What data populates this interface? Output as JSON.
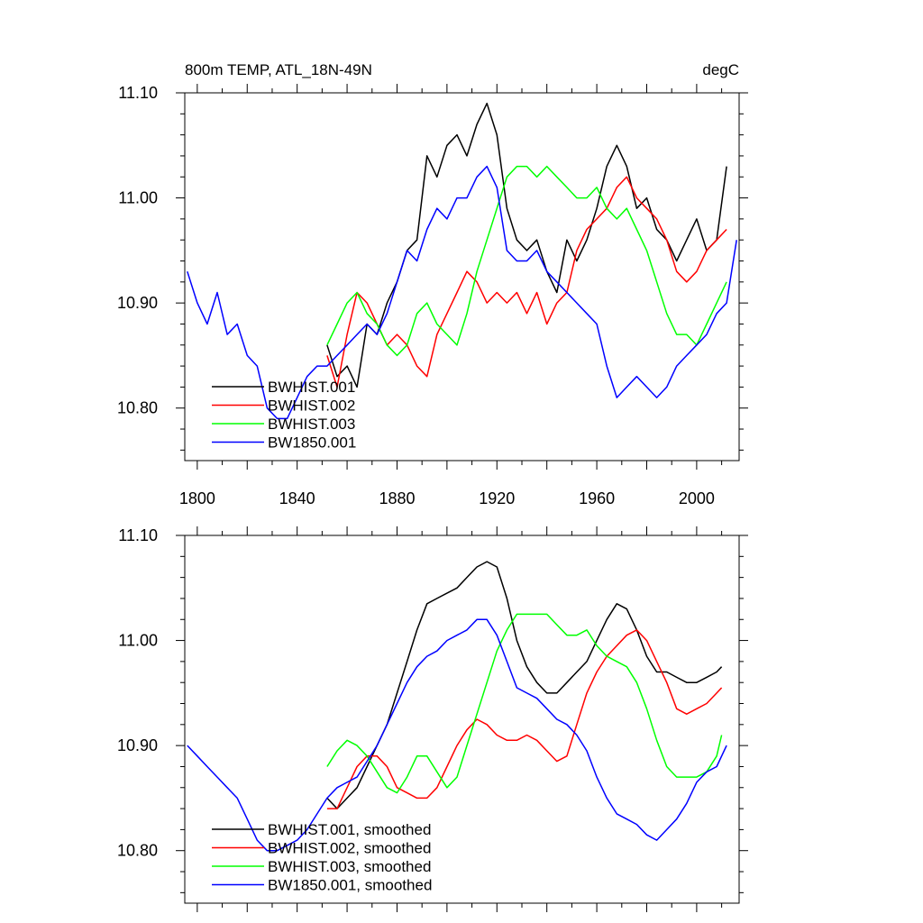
{
  "chart_data": [
    {
      "type": "line",
      "title": "800m TEMP, ATL_18N-49N",
      "units": "degC",
      "xlim": [
        1795,
        2017
      ],
      "ylim": [
        10.75,
        11.1
      ],
      "x_ticks": [
        "1800",
        "1840",
        "1880",
        "1920",
        "1960",
        "2000"
      ],
      "y_ticks": [
        "11.10",
        "11.00",
        "10.90",
        "10.80"
      ],
      "legend_position": "bottom-left",
      "series": [
        {
          "name": "BWHIST.001",
          "color": "#000000",
          "x": [
            1852,
            1856,
            1860,
            1864,
            1868,
            1872,
            1876,
            1880,
            1884,
            1888,
            1892,
            1896,
            1900,
            1904,
            1908,
            1912,
            1916,
            1920,
            1924,
            1928,
            1932,
            1936,
            1940,
            1944,
            1948,
            1952,
            1956,
            1960,
            1964,
            1968,
            1972,
            1976,
            1980,
            1984,
            1988,
            1992,
            1996,
            2000,
            2004,
            2008,
            2012
          ],
          "y": [
            10.86,
            10.83,
            10.84,
            10.82,
            10.88,
            10.87,
            10.9,
            10.92,
            10.95,
            10.96,
            11.04,
            11.02,
            11.05,
            11.06,
            11.04,
            11.07,
            11.09,
            11.06,
            10.99,
            10.96,
            10.95,
            10.96,
            10.93,
            10.91,
            10.96,
            10.94,
            10.96,
            10.99,
            11.03,
            11.05,
            11.03,
            10.99,
            11.0,
            10.97,
            10.96,
            10.94,
            10.96,
            10.98,
            10.95,
            10.96,
            11.03
          ]
        },
        {
          "name": "BWHIST.002",
          "color": "#ff0000",
          "x": [
            1852,
            1856,
            1860,
            1864,
            1868,
            1872,
            1876,
            1880,
            1884,
            1888,
            1892,
            1896,
            1900,
            1904,
            1908,
            1912,
            1916,
            1920,
            1924,
            1928,
            1932,
            1936,
            1940,
            1944,
            1948,
            1952,
            1956,
            1960,
            1964,
            1968,
            1972,
            1976,
            1980,
            1984,
            1988,
            1992,
            1996,
            2000,
            2004,
            2008,
            2012
          ],
          "y": [
            10.85,
            10.82,
            10.87,
            10.91,
            10.9,
            10.88,
            10.86,
            10.87,
            10.86,
            10.84,
            10.83,
            10.87,
            10.89,
            10.91,
            10.93,
            10.92,
            10.9,
            10.91,
            10.9,
            10.91,
            10.89,
            10.91,
            10.88,
            10.9,
            10.91,
            10.95,
            10.97,
            10.98,
            10.99,
            11.01,
            11.02,
            11.0,
            10.99,
            10.98,
            10.96,
            10.93,
            10.92,
            10.93,
            10.95,
            10.96,
            10.97
          ]
        },
        {
          "name": "BWHIST.003",
          "color": "#00ff00",
          "x": [
            1852,
            1856,
            1860,
            1864,
            1868,
            1872,
            1876,
            1880,
            1884,
            1888,
            1892,
            1896,
            1900,
            1904,
            1908,
            1912,
            1916,
            1920,
            1924,
            1928,
            1932,
            1936,
            1940,
            1944,
            1948,
            1952,
            1956,
            1960,
            1964,
            1968,
            1972,
            1976,
            1980,
            1984,
            1988,
            1992,
            1996,
            2000,
            2004,
            2008,
            2012
          ],
          "y": [
            10.86,
            10.88,
            10.9,
            10.91,
            10.89,
            10.88,
            10.86,
            10.85,
            10.86,
            10.89,
            10.9,
            10.88,
            10.87,
            10.86,
            10.89,
            10.93,
            10.96,
            10.99,
            11.02,
            11.03,
            11.03,
            11.02,
            11.03,
            11.02,
            11.01,
            11.0,
            11.0,
            11.01,
            10.99,
            10.98,
            10.99,
            10.97,
            10.95,
            10.92,
            10.89,
            10.87,
            10.87,
            10.86,
            10.88,
            10.9,
            10.92
          ]
        },
        {
          "name": "BW1850.001",
          "color": "#0000ff",
          "x": [
            1796,
            1800,
            1804,
            1808,
            1812,
            1816,
            1820,
            1824,
            1828,
            1832,
            1836,
            1840,
            1844,
            1848,
            1852,
            1856,
            1860,
            1864,
            1868,
            1872,
            1876,
            1880,
            1884,
            1888,
            1892,
            1896,
            1900,
            1904,
            1908,
            1912,
            1916,
            1920,
            1924,
            1928,
            1932,
            1936,
            1940,
            1944,
            1948,
            1952,
            1956,
            1960,
            1964,
            1968,
            1972,
            1976,
            1980,
            1984,
            1988,
            1992,
            1996,
            2000,
            2004,
            2008,
            2012,
            2016
          ],
          "y": [
            10.93,
            10.9,
            10.88,
            10.91,
            10.87,
            10.88,
            10.85,
            10.84,
            10.8,
            10.79,
            10.79,
            10.81,
            10.83,
            10.84,
            10.84,
            10.85,
            10.86,
            10.87,
            10.88,
            10.87,
            10.89,
            10.92,
            10.95,
            10.94,
            10.97,
            10.99,
            10.98,
            11.0,
            11.0,
            11.02,
            11.03,
            11.01,
            10.95,
            10.94,
            10.94,
            10.95,
            10.93,
            10.92,
            10.91,
            10.9,
            10.89,
            10.88,
            10.84,
            10.81,
            10.82,
            10.83,
            10.82,
            10.81,
            10.82,
            10.84,
            10.85,
            10.86,
            10.87,
            10.89,
            10.9,
            10.96
          ]
        }
      ]
    },
    {
      "type": "line",
      "xlim": [
        1795,
        2017
      ],
      "ylim": [
        10.75,
        11.1
      ],
      "y_ticks": [
        "11.10",
        "11.00",
        "10.90",
        "10.80"
      ],
      "legend_position": "bottom-left",
      "series": [
        {
          "name": "BWHIST.001, smoothed",
          "color": "#000000",
          "x": [
            1852,
            1856,
            1860,
            1864,
            1868,
            1872,
            1876,
            1880,
            1884,
            1888,
            1892,
            1896,
            1900,
            1904,
            1908,
            1912,
            1916,
            1920,
            1924,
            1928,
            1932,
            1936,
            1940,
            1944,
            1948,
            1952,
            1956,
            1960,
            1964,
            1968,
            1972,
            1976,
            1980,
            1984,
            1988,
            1992,
            1996,
            2000,
            2004,
            2008,
            2010
          ],
          "y": [
            10.85,
            10.84,
            10.85,
            10.86,
            10.88,
            10.9,
            10.92,
            10.95,
            10.98,
            11.01,
            11.035,
            11.04,
            11.045,
            11.05,
            11.06,
            11.07,
            11.075,
            11.07,
            11.04,
            11.0,
            10.975,
            10.96,
            10.95,
            10.95,
            10.96,
            10.97,
            10.98,
            11.0,
            11.02,
            11.035,
            11.03,
            11.01,
            10.985,
            10.97,
            10.97,
            10.965,
            10.96,
            10.96,
            10.965,
            10.97,
            10.975
          ]
        },
        {
          "name": "BWHIST.002, smoothed",
          "color": "#ff0000",
          "x": [
            1852,
            1856,
            1860,
            1864,
            1868,
            1872,
            1876,
            1880,
            1884,
            1888,
            1892,
            1896,
            1900,
            1904,
            1908,
            1912,
            1916,
            1920,
            1924,
            1928,
            1932,
            1936,
            1940,
            1944,
            1948,
            1952,
            1956,
            1960,
            1964,
            1968,
            1972,
            1976,
            1980,
            1984,
            1988,
            1992,
            1996,
            2000,
            2004,
            2008,
            2010
          ],
          "y": [
            10.84,
            10.84,
            10.86,
            10.88,
            10.89,
            10.89,
            10.88,
            10.86,
            10.855,
            10.85,
            10.85,
            10.86,
            10.88,
            10.9,
            10.915,
            10.925,
            10.92,
            10.91,
            10.905,
            10.905,
            10.91,
            10.905,
            10.895,
            10.885,
            10.89,
            10.92,
            10.95,
            10.97,
            10.985,
            10.995,
            11.005,
            11.01,
            11.0,
            10.98,
            10.96,
            10.935,
            10.93,
            10.935,
            10.94,
            10.95,
            10.955
          ]
        },
        {
          "name": "BWHIST.003, smoothed",
          "color": "#00ff00",
          "x": [
            1852,
            1856,
            1860,
            1864,
            1868,
            1872,
            1876,
            1880,
            1884,
            1888,
            1892,
            1896,
            1900,
            1904,
            1908,
            1912,
            1916,
            1920,
            1924,
            1928,
            1932,
            1936,
            1940,
            1944,
            1948,
            1952,
            1956,
            1960,
            1964,
            1968,
            1972,
            1976,
            1980,
            1984,
            1988,
            1992,
            1996,
            2000,
            2004,
            2008,
            2010
          ],
          "y": [
            10.88,
            10.895,
            10.905,
            10.9,
            10.89,
            10.875,
            10.86,
            10.855,
            10.87,
            10.89,
            10.89,
            10.875,
            10.86,
            10.87,
            10.9,
            10.93,
            10.96,
            10.99,
            11.01,
            11.025,
            11.025,
            11.025,
            11.025,
            11.015,
            11.005,
            11.005,
            11.01,
            10.995,
            10.985,
            10.98,
            10.975,
            10.96,
            10.935,
            10.905,
            10.88,
            10.87,
            10.87,
            10.87,
            10.875,
            10.89,
            10.91
          ]
        },
        {
          "name": "BW1850.001, smoothed",
          "color": "#0000ff",
          "x": [
            1796,
            1800,
            1804,
            1808,
            1812,
            1816,
            1820,
            1824,
            1828,
            1832,
            1836,
            1840,
            1844,
            1848,
            1852,
            1856,
            1860,
            1864,
            1868,
            1872,
            1876,
            1880,
            1884,
            1888,
            1892,
            1896,
            1900,
            1904,
            1908,
            1912,
            1916,
            1920,
            1924,
            1928,
            1932,
            1936,
            1940,
            1944,
            1948,
            1952,
            1956,
            1960,
            1964,
            1968,
            1972,
            1976,
            1980,
            1984,
            1988,
            1992,
            1996,
            2000,
            2004,
            2008,
            2012
          ],
          "y": [
            10.9,
            10.89,
            10.88,
            10.87,
            10.86,
            10.85,
            10.83,
            10.81,
            10.8,
            10.8,
            10.805,
            10.81,
            10.82,
            10.835,
            10.85,
            10.86,
            10.865,
            10.87,
            10.885,
            10.9,
            10.92,
            10.94,
            10.96,
            10.975,
            10.985,
            10.99,
            11.0,
            11.005,
            11.01,
            11.02,
            11.02,
            11.005,
            10.98,
            10.955,
            10.95,
            10.945,
            10.935,
            10.925,
            10.92,
            10.91,
            10.895,
            10.87,
            10.85,
            10.835,
            10.83,
            10.825,
            10.815,
            10.81,
            10.82,
            10.83,
            10.845,
            10.865,
            10.875,
            10.88,
            10.9
          ]
        }
      ]
    }
  ]
}
